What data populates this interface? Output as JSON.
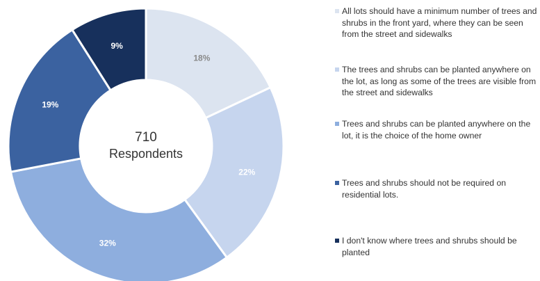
{
  "chart_data": {
    "type": "pie",
    "variant": "donut",
    "center_label": {
      "count": "710",
      "text": "Respondents"
    },
    "series": [
      {
        "name": "All lots should have a minimum number of trees and shrubs in the front yard, where they can be seen from the street and sidewalks",
        "value": 18,
        "label": "18%",
        "color": "#dce4f0",
        "label_color": "#8a8a8a"
      },
      {
        "name": "The trees and shrubs can be planted anywhere on the lot, as long as some of the trees are visible from the street and sidewalks",
        "value": 22,
        "label": "22%",
        "color": "#c6d5ee",
        "label_color": "#ffffff"
      },
      {
        "name": "Trees and shrubs can be planted anywhere on the lot, it is the choice of the home owner",
        "value": 32,
        "label": "32%",
        "color": "#8eaede",
        "label_color": "#ffffff"
      },
      {
        "name": "Trees and shrubs should not be required on residential lots.",
        "value": 19,
        "label": "19%",
        "color": "#3b62a0",
        "label_color": "#ffffff"
      },
      {
        "name": "I don't know where trees and shrubs should be planted",
        "value": 9,
        "label": "9%",
        "color": "#17305c",
        "label_color": "#ffffff"
      }
    ],
    "legend_position": "right"
  }
}
